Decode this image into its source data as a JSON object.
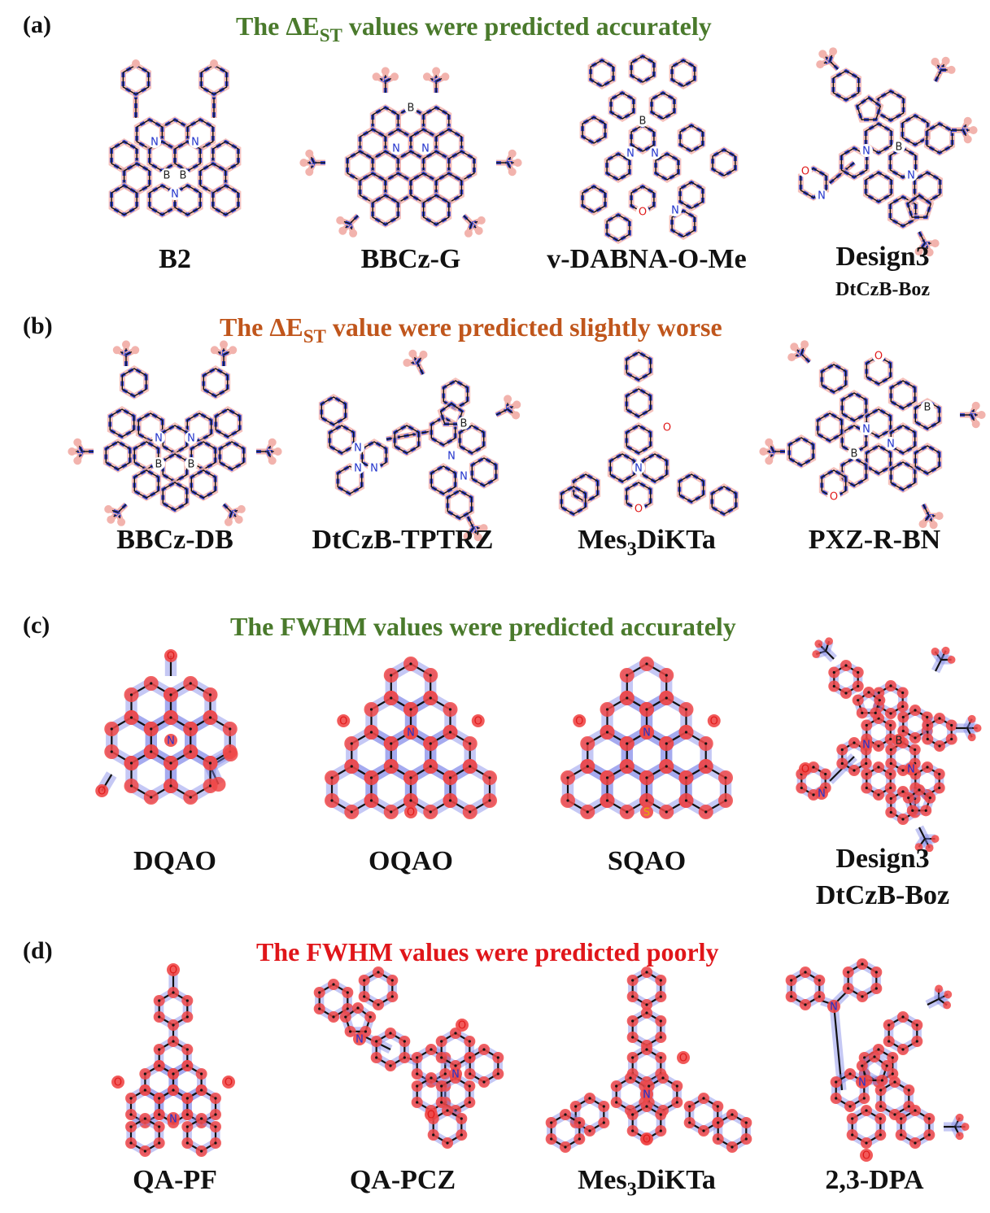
{
  "colors": {
    "green": "#4a7a2c",
    "orange": "#c0561c",
    "red": "#e0161a",
    "bond": "#111111",
    "halo_blue": "#7f86e8",
    "halo_red": "#f36b6b",
    "atom_red": "#f04848"
  },
  "panels": [
    {
      "letter": "(a)",
      "title_pre": "The ΔE",
      "title_sub": "ST",
      "title_post": " values were predicted accurately",
      "color_key": "green",
      "molecules": [
        {
          "name": "B2"
        },
        {
          "name": "BBCz-G"
        },
        {
          "name": "v-DABNA-O-Me"
        },
        {
          "name": "Design3",
          "subname": "DtCzB-Boz"
        }
      ]
    },
    {
      "letter": "(b)",
      "title_pre": "The ΔE",
      "title_sub": "ST",
      "title_post": " value were predicted  slightly worse",
      "color_key": "orange",
      "molecules": [
        {
          "name": "BBCz-DB"
        },
        {
          "name": "DtCzB-TPTRZ"
        },
        {
          "name_pre": "Mes",
          "name_sub": "3",
          "name_post": "DiKTa"
        },
        {
          "name": "PXZ-R-BN"
        }
      ]
    },
    {
      "letter": "(c)",
      "title_pre": "The FWHM values were predicted accurately",
      "color_key": "green",
      "molecules": [
        {
          "name": "DQAO"
        },
        {
          "name": "OQAO"
        },
        {
          "name": "SQAO"
        },
        {
          "name": "Design3",
          "subname": "DtCzB-Boz"
        }
      ]
    },
    {
      "letter": "(d)",
      "title_pre": "The FWHM values were predicted poorly",
      "color_key": "red",
      "molecules": [
        {
          "name": "QA-PF"
        },
        {
          "name": "QA-PCZ"
        },
        {
          "name_pre": "Mes",
          "name_sub": "3",
          "name_post": "DiKTa"
        },
        {
          "name": "2,3-DPA"
        }
      ]
    }
  ],
  "atom_labels": {
    "a_B2": [
      "N",
      "N",
      "B",
      "B",
      "N"
    ],
    "a_BBCz": [
      "B",
      "N",
      "N"
    ],
    "a_vdab": [
      "B",
      "N",
      "N",
      "O",
      "N"
    ],
    "a_design": [
      "N",
      "B",
      "N",
      "O",
      "N"
    ],
    "b_BBCzDB": [
      "N",
      "N",
      "B",
      "B"
    ],
    "b_tptrz": [
      "N",
      "N",
      "N",
      "N",
      "N",
      "B"
    ],
    "b_mes": [
      "N",
      "O",
      "O"
    ],
    "b_pxz": [
      "O",
      "B",
      "N",
      "N",
      "B",
      "O"
    ],
    "c_dqao": [
      "O",
      "N",
      "O"
    ],
    "c_oqao": [
      "O",
      "N",
      "O",
      "O"
    ],
    "c_sqao": [
      "O",
      "N",
      "O",
      "S"
    ],
    "c_design": [
      "N",
      "B",
      "N",
      "O",
      "N"
    ],
    "d_qapf": [
      "O",
      "O",
      "N",
      "O"
    ],
    "d_qapcz": [
      "N",
      "O",
      "N",
      "O"
    ],
    "d_mes": [
      "O",
      "N",
      "O"
    ],
    "d_dpa": [
      "N",
      "N",
      "O"
    ]
  }
}
